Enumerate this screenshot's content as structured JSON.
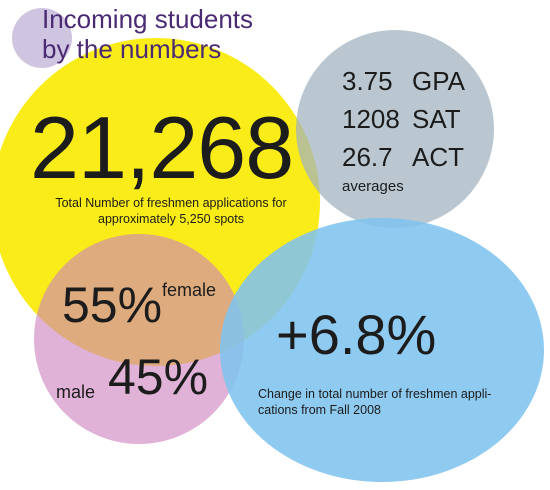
{
  "title": {
    "line1": "Incoming students",
    "line2": "by the numbers"
  },
  "applications": {
    "number": "21,268",
    "caption": "Total Number of freshmen applications for approximately 5,250 spots"
  },
  "averages": {
    "stats": [
      {
        "value": "3.75",
        "label": "GPA"
      },
      {
        "value": "1208",
        "label": "SAT"
      },
      {
        "value": "26.7",
        "label": "ACT"
      }
    ],
    "label": "averages"
  },
  "gender": {
    "female_pct": "55%",
    "female_label": "female",
    "male_pct": "45%",
    "male_label": "male"
  },
  "change": {
    "number": "+6.8%",
    "caption": "Change in total number of freshmen appli-cations from Fall 2008"
  },
  "colors": {
    "yellow": "#f8ea00",
    "gray": "#a0b2be",
    "purple": "#cd82be",
    "blue": "#80c3ee",
    "lavender": "#cfc5e0",
    "title": "#4a2a72"
  }
}
